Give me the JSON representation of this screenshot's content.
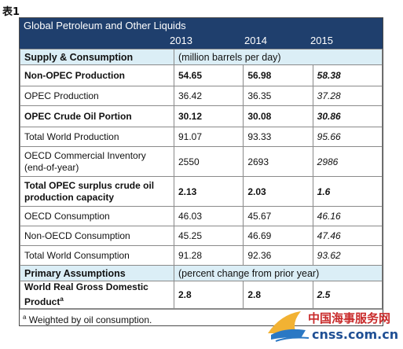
{
  "page_label": "表1",
  "table": {
    "title": "Global Petroleum and Other Liquids",
    "years": [
      "2013",
      "2014",
      "2015"
    ],
    "rows": [
      {
        "type": "section",
        "label": "Supply & Consumption",
        "note": "(million barrels per day)"
      },
      {
        "type": "bold",
        "label": "Non-OPEC Production",
        "v": [
          "54.65",
          "56.98",
          "58.38"
        ]
      },
      {
        "type": "normal",
        "label": "OPEC Production",
        "v": [
          "36.42",
          "36.35",
          "37.28"
        ]
      },
      {
        "type": "bold",
        "label": "OPEC Crude Oil Portion",
        "v": [
          "30.12",
          "30.08",
          "30.86"
        ]
      },
      {
        "type": "normal",
        "label": "Total World Production",
        "v": [
          "91.07",
          "93.33",
          "95.66"
        ]
      },
      {
        "type": "normal",
        "label": "OECD Commercial Inventory (end-of-year)",
        "v": [
          "2550",
          "2693",
          "2986"
        ]
      },
      {
        "type": "bold",
        "label": "Total OPEC surplus crude oil production capacity",
        "v": [
          "2.13",
          "2.03",
          "1.6"
        ]
      },
      {
        "type": "normal",
        "label": "OECD Consumption",
        "v": [
          "46.03",
          "45.67",
          "46.16"
        ]
      },
      {
        "type": "normal",
        "label": "Non-OECD Consumption",
        "v": [
          "45.25",
          "46.69",
          "47.46"
        ]
      },
      {
        "type": "normal",
        "label": "Total World Consumption",
        "v": [
          "91.28",
          "92.36",
          "93.62"
        ]
      },
      {
        "type": "section",
        "label": "Primary Assumptions",
        "note": "(percent change from prior year)"
      },
      {
        "type": "bold",
        "label": "World Real Gross Domestic Product",
        "label_sup": "a",
        "v": [
          "2.8",
          "2.8",
          "2.5"
        ]
      }
    ],
    "footnote_sup": "a",
    "footnote": "Weighted by oil consumption."
  },
  "watermark": {
    "cn": "中国海事服务网",
    "en": "cnss.com.cn"
  },
  "colors": {
    "header_bg": "#1f3f6d",
    "section_bg": "#dbeef6",
    "watermark_red": "#c92b2b",
    "watermark_blue": "#1f4f94"
  }
}
